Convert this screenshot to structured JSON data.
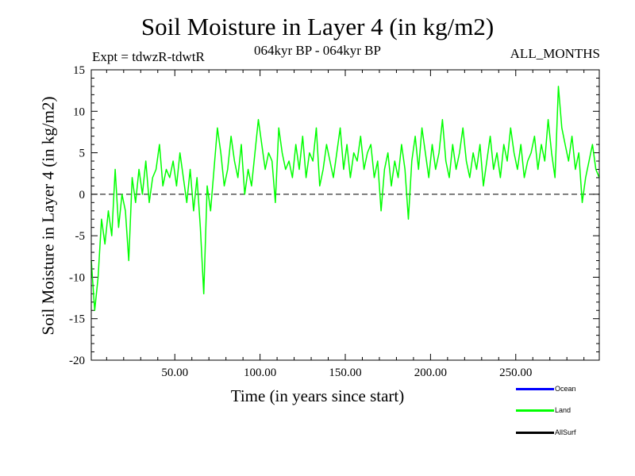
{
  "chart_data": {
    "type": "line",
    "title": "Soil Moisture in Layer 4 (in kg/m2)",
    "subtitle_left": "Expt = tdwzR-tdwtR",
    "subtitle_center": "064kyr BP - 064kyr BP",
    "subtitle_right": "ALL_MONTHS",
    "xlabel": "Time (in years since start)",
    "ylabel": "Soil Moisture in Layer 4 (in kg/m2)",
    "xlim": [
      1,
      299
    ],
    "ylim": [
      -20,
      15
    ],
    "x_ticks": [
      50,
      100,
      150,
      200,
      250
    ],
    "x_tick_labels": [
      "50.00",
      "100.00",
      "150.00",
      "200.00",
      "250.00"
    ],
    "y_ticks": [
      -20,
      -15,
      -10,
      -5,
      0,
      5,
      10,
      15
    ],
    "y_tick_labels": [
      "-20",
      "-15",
      "-10",
      "-5",
      "0",
      "5",
      "10",
      "15"
    ],
    "reference_line": {
      "y": 0,
      "style": "dashed"
    },
    "legend": [
      {
        "name": "Ocean",
        "label": "Ocean",
        "color": "#0000ff"
      },
      {
        "name": "Land",
        "label": "Land",
        "color": "#00ff00"
      },
      {
        "name": "AllSurf",
        "label": "AllSurf",
        "color": "#000000"
      }
    ],
    "series": [
      {
        "name": "Land",
        "color": "#00ff00",
        "x": [
          1,
          3,
          5,
          7,
          9,
          11,
          13,
          15,
          17,
          19,
          21,
          23,
          25,
          27,
          29,
          31,
          33,
          35,
          37,
          39,
          41,
          43,
          45,
          47,
          49,
          51,
          53,
          55,
          57,
          59,
          61,
          63,
          65,
          67,
          69,
          71,
          73,
          75,
          77,
          79,
          81,
          83,
          85,
          87,
          89,
          91,
          93,
          95,
          97,
          99,
          101,
          103,
          105,
          107,
          109,
          111,
          113,
          115,
          117,
          119,
          121,
          123,
          125,
          127,
          129,
          131,
          133,
          135,
          137,
          139,
          141,
          143,
          145,
          147,
          149,
          151,
          153,
          155,
          157,
          159,
          161,
          163,
          165,
          167,
          169,
          171,
          173,
          175,
          177,
          179,
          181,
          183,
          185,
          187,
          189,
          191,
          193,
          195,
          197,
          199,
          201,
          203,
          205,
          207,
          209,
          211,
          213,
          215,
          217,
          219,
          221,
          223,
          225,
          227,
          229,
          231,
          233,
          235,
          237,
          239,
          241,
          243,
          245,
          247,
          249,
          251,
          253,
          255,
          257,
          259,
          261,
          263,
          265,
          267,
          269,
          271,
          273,
          275,
          277,
          279,
          281,
          283,
          285,
          287,
          289,
          291,
          293,
          295,
          297,
          299
        ],
        "values": [
          -8,
          -14,
          -10,
          -3,
          -6,
          -2,
          -5,
          3,
          -4,
          0,
          -2,
          -8,
          2,
          -1,
          3,
          0,
          4,
          -1,
          2,
          3,
          6,
          1,
          3,
          2,
          4,
          1,
          5,
          2,
          -1,
          3,
          -2,
          2,
          -4,
          -12,
          1,
          -2,
          3,
          8,
          5,
          1,
          3,
          7,
          4,
          2,
          6,
          0,
          3,
          1,
          5,
          9,
          6,
          3,
          5,
          4,
          -1,
          8,
          5,
          3,
          4,
          2,
          6,
          3,
          7,
          2,
          5,
          4,
          8,
          1,
          3,
          6,
          4,
          2,
          5,
          8,
          3,
          6,
          2,
          5,
          4,
          7,
          3,
          5,
          6,
          2,
          4,
          -2,
          3,
          5,
          1,
          4,
          2,
          6,
          3,
          -3,
          4,
          7,
          3,
          8,
          5,
          2,
          6,
          3,
          5,
          9,
          4,
          2,
          6,
          3,
          5,
          8,
          4,
          2,
          5,
          3,
          6,
          1,
          4,
          7,
          3,
          5,
          2,
          6,
          4,
          8,
          5,
          3,
          6,
          2,
          4,
          5,
          7,
          3,
          6,
          4,
          9,
          5,
          2,
          13,
          8,
          6,
          4,
          7,
          3,
          5,
          -1,
          2,
          4,
          6,
          3,
          2
        ]
      }
    ]
  }
}
